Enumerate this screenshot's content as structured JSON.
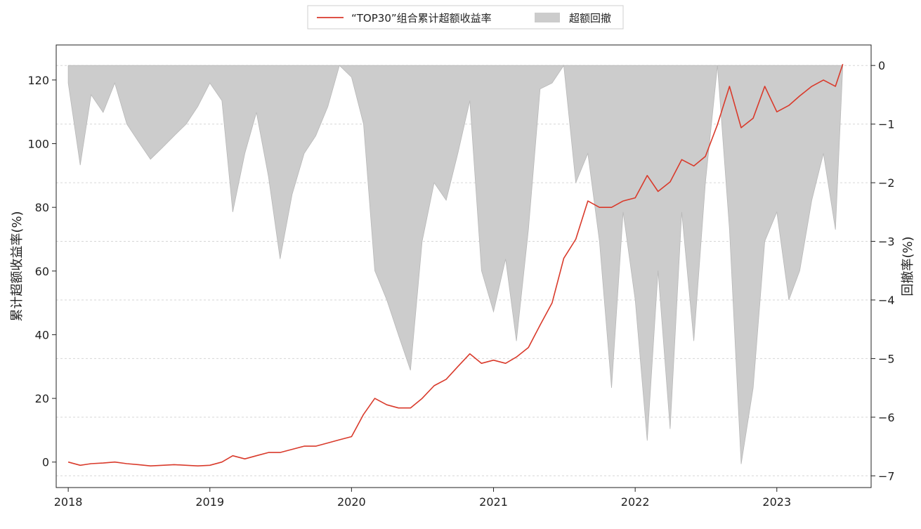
{
  "colors": {
    "excess_line": "#d93a2b",
    "drawdown_fill": "#cccccc",
    "drawdown_edge": "#b8b8b8",
    "grid": "#d6d6d6",
    "axis": "#222222"
  },
  "chart_data": {
    "type": "line",
    "legend": {
      "placement": "top-center",
      "entries": [
        {
          "label": "“TOP30”组合累计超额收益率",
          "kind": "line"
        },
        {
          "label": "超额回撤",
          "kind": "area"
        }
      ]
    },
    "x_axis": {
      "ticks": [
        "2018",
        "2019",
        "2020",
        "2021",
        "2022",
        "2023"
      ],
      "range": [
        "2017-12-01",
        "2023-09-01"
      ]
    },
    "y_left": {
      "label": "累计超额收益率(%)",
      "ticks": [
        0,
        20,
        40,
        60,
        80,
        100,
        120
      ],
      "range": [
        -8,
        131
      ]
    },
    "y_right": {
      "label": "回撤率(%)",
      "ticks": [
        0,
        -1,
        -2,
        -3,
        -4,
        -5,
        -6,
        -7
      ],
      "range": [
        -7.2,
        0.35
      ],
      "grid": "dashed"
    },
    "series": [
      {
        "name": "“TOP30”组合累计超额收益率",
        "axis": "left",
        "kind": "line",
        "x": [
          "2018-01-01",
          "2018-02-01",
          "2018-03-01",
          "2018-04-01",
          "2018-05-01",
          "2018-06-01",
          "2018-07-01",
          "2018-08-01",
          "2018-09-01",
          "2018-10-01",
          "2018-11-01",
          "2018-12-01",
          "2019-01-01",
          "2019-02-01",
          "2019-03-01",
          "2019-04-01",
          "2019-05-01",
          "2019-06-01",
          "2019-07-01",
          "2019-08-01",
          "2019-09-01",
          "2019-10-01",
          "2019-11-01",
          "2019-12-01",
          "2020-01-01",
          "2020-02-01",
          "2020-03-01",
          "2020-04-01",
          "2020-05-01",
          "2020-06-01",
          "2020-07-01",
          "2020-08-01",
          "2020-09-01",
          "2020-10-01",
          "2020-11-01",
          "2020-12-01",
          "2021-01-01",
          "2021-02-01",
          "2021-03-01",
          "2021-04-01",
          "2021-05-01",
          "2021-06-01",
          "2021-07-01",
          "2021-08-01",
          "2021-09-01",
          "2021-10-01",
          "2021-11-01",
          "2021-12-01",
          "2022-01-01",
          "2022-02-01",
          "2022-03-01",
          "2022-04-01",
          "2022-05-01",
          "2022-06-01",
          "2022-07-01",
          "2022-08-01",
          "2022-09-01",
          "2022-10-01",
          "2022-11-01",
          "2022-12-01",
          "2023-01-01",
          "2023-02-01",
          "2023-03-01",
          "2023-04-01",
          "2023-05-01",
          "2023-06-01",
          "2023-06-20"
        ],
        "y": [
          0,
          -1,
          -0.5,
          -0.3,
          0,
          -0.5,
          -0.8,
          -1.2,
          -1,
          -0.8,
          -1,
          -1.2,
          -1,
          0,
          2,
          1,
          2,
          3,
          3,
          4,
          5,
          5,
          6,
          7,
          8,
          15,
          20,
          18,
          17,
          17,
          20,
          24,
          26,
          30,
          34,
          31,
          32,
          31,
          33,
          36,
          43,
          50,
          64,
          70,
          82,
          80,
          80,
          82,
          83,
          90,
          85,
          88,
          95,
          93,
          96,
          106,
          118,
          105,
          108,
          118,
          110,
          112,
          115,
          118,
          120,
          118,
          125
        ]
      },
      {
        "name": "超额回撤",
        "axis": "right",
        "kind": "area",
        "x": [
          "2018-01-01",
          "2018-02-01",
          "2018-03-01",
          "2018-04-01",
          "2018-05-01",
          "2018-06-01",
          "2018-07-01",
          "2018-08-01",
          "2018-09-01",
          "2018-10-01",
          "2018-11-01",
          "2018-12-01",
          "2019-01-01",
          "2019-02-01",
          "2019-03-01",
          "2019-04-01",
          "2019-05-01",
          "2019-06-01",
          "2019-07-01",
          "2019-08-01",
          "2019-09-01",
          "2019-10-01",
          "2019-11-01",
          "2019-12-01",
          "2020-01-01",
          "2020-02-01",
          "2020-03-01",
          "2020-04-01",
          "2020-05-01",
          "2020-06-01",
          "2020-07-01",
          "2020-08-01",
          "2020-09-01",
          "2020-10-01",
          "2020-11-01",
          "2020-12-01",
          "2021-01-01",
          "2021-02-01",
          "2021-03-01",
          "2021-04-01",
          "2021-05-01",
          "2021-06-01",
          "2021-07-01",
          "2021-08-01",
          "2021-09-01",
          "2021-10-01",
          "2021-11-01",
          "2021-12-01",
          "2022-01-01",
          "2022-02-01",
          "2022-03-01",
          "2022-04-01",
          "2022-05-01",
          "2022-06-01",
          "2022-07-01",
          "2022-08-01",
          "2022-09-01",
          "2022-10-01",
          "2022-11-01",
          "2022-12-01",
          "2023-01-01",
          "2023-02-01",
          "2023-03-01",
          "2023-04-01",
          "2023-05-01",
          "2023-06-01",
          "2023-06-20"
        ],
        "y": [
          -0.3,
          -1.7,
          -0.5,
          -0.8,
          -0.3,
          -1.0,
          -1.3,
          -1.6,
          -1.4,
          -1.2,
          -1.0,
          -0.7,
          -0.3,
          -0.6,
          -2.5,
          -1.5,
          -0.8,
          -1.9,
          -3.3,
          -2.2,
          -1.5,
          -1.2,
          -0.7,
          0,
          -0.2,
          -1.0,
          -3.5,
          -4.0,
          -4.6,
          -5.2,
          -3.0,
          -2.0,
          -2.3,
          -1.5,
          -0.6,
          -3.5,
          -4.2,
          -3.3,
          -4.7,
          -2.8,
          -0.4,
          -0.3,
          0,
          -2.0,
          -1.5,
          -3.0,
          -5.5,
          -2.5,
          -4.0,
          -6.4,
          -3.5,
          -6.2,
          -2.5,
          -4.7,
          -2.0,
          0,
          -2.8,
          -6.8,
          -5.5,
          -3.0,
          -2.5,
          -4.0,
          -3.5,
          -2.3,
          -1.5,
          -2.8,
          0
        ]
      }
    ]
  }
}
